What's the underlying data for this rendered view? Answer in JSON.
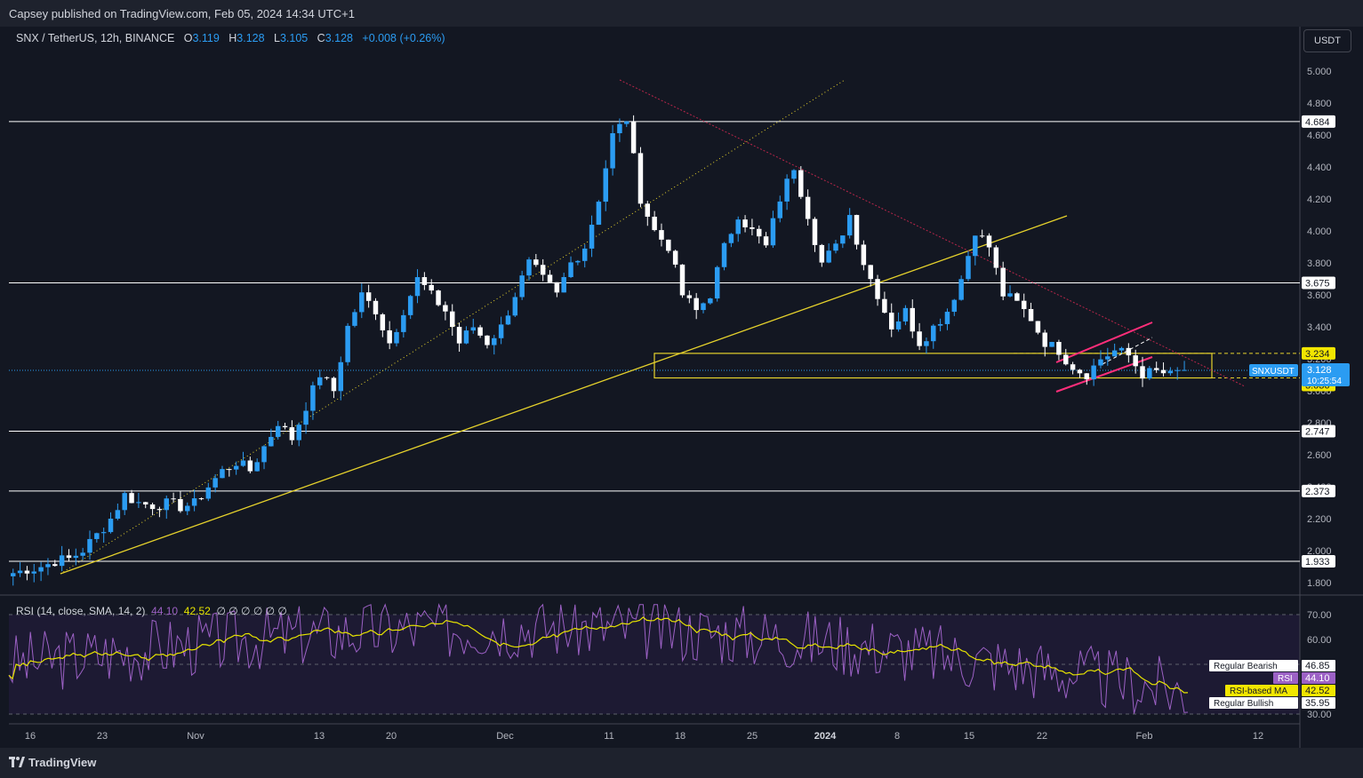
{
  "header": {
    "published": "Capsey published on TradingView.com, Feb 05, 2024 14:34 UTC+1"
  },
  "legend": {
    "symbol": "SNX / TetherUS, 12h, BINANCE",
    "o_label": "O",
    "o": "3.119",
    "h_label": "H",
    "h": "3.128",
    "l_label": "L",
    "l": "3.105",
    "c_label": "C",
    "c": "3.128",
    "change": "+0.008 (+0.26%)"
  },
  "currency_button": "USDT",
  "price_axis": {
    "ticks": [
      "5.000",
      "4.800",
      "4.600",
      "4.400",
      "4.200",
      "4.000",
      "3.800",
      "3.600",
      "3.400",
      "3.200",
      "3.000",
      "2.800",
      "2.600",
      "2.400",
      "2.200",
      "2.000",
      "1.800"
    ],
    "levels": [
      {
        "label": "4.684",
        "value": 4.684
      },
      {
        "label": "3.675",
        "value": 3.675
      },
      {
        "label": "2.747",
        "value": 2.747
      },
      {
        "label": "2.373",
        "value": 2.373
      },
      {
        "label": "1.933",
        "value": 1.933
      }
    ],
    "box_top": {
      "label": "3.234",
      "value": 3.234
    },
    "box_bottom": {
      "label": "3.036",
      "value": 3.036
    },
    "current": {
      "symbol": "SNXUSDT",
      "price": "3.128",
      "countdown": "10:25:54",
      "value": 3.128
    }
  },
  "time_axis": [
    "16",
    "23",
    "Nov",
    "13",
    "20",
    "Dec",
    "11",
    "18",
    "25",
    "2024",
    "8",
    "15",
    "22",
    "Feb",
    "12"
  ],
  "rsi": {
    "legend": "RSI (14, close, SMA, 14, 2)",
    "rsi_value": "44.10",
    "ma_value": "42.52",
    "extra": "∅ ∅ ∅ ∅ ∅ ∅",
    "ticks": [
      "70.00",
      "60.00",
      "30.00"
    ],
    "labels": [
      {
        "text": "Regular Bearish",
        "value": "46.85"
      },
      {
        "text": "RSI",
        "value": "44.10"
      },
      {
        "text": "RSI-based MA",
        "value": "42.52"
      },
      {
        "text": "Regular Bullish",
        "value": "35.95"
      }
    ]
  },
  "chart_data": {
    "type": "candlestick",
    "title": "SNX / TetherUS, 12h, BINANCE",
    "ylim": [
      1.75,
      5.05
    ],
    "y_scale": "linear",
    "grid": false,
    "colors": {
      "up": "#2b9cf2",
      "down": "#ffffff",
      "trend": "#e6d22c",
      "downtrend": "#b8264a",
      "channel": "#ff2e7a",
      "rsi": "#9c61c5",
      "rsi_ma": "#e6e300"
    },
    "x_labels": [
      "16",
      "23",
      "Nov",
      "13",
      "20",
      "Dec",
      "11",
      "18",
      "25",
      "2024",
      "8",
      "15",
      "22",
      "Feb",
      "12"
    ],
    "close_path": [
      1.86,
      1.88,
      1.9,
      1.93,
      1.95,
      2.0,
      2.1,
      2.2,
      2.35,
      2.3,
      2.28,
      2.3,
      2.27,
      2.3,
      2.4,
      2.5,
      2.55,
      2.5,
      2.65,
      2.8,
      2.7,
      2.9,
      3.1,
      3.0,
      3.4,
      3.6,
      3.5,
      3.3,
      3.5,
      3.7,
      3.6,
      3.5,
      3.3,
      3.4,
      3.3,
      3.4,
      3.6,
      3.8,
      3.7,
      3.6,
      3.8,
      3.9,
      4.2,
      4.6,
      4.7,
      4.2,
      4.0,
      3.9,
      3.6,
      3.5,
      3.6,
      3.9,
      4.1,
      4.0,
      3.9,
      4.2,
      4.4,
      4.1,
      3.8,
      3.9,
      4.1,
      3.8,
      3.6,
      3.4,
      3.5,
      3.3,
      3.4,
      3.5,
      3.7,
      4.0,
      3.9,
      3.6,
      3.55,
      3.45,
      3.3,
      3.25,
      3.15,
      3.1,
      3.2,
      3.25,
      3.22,
      3.1,
      3.12,
      3.1,
      3.13
    ],
    "rsi_ylim": [
      28,
      75
    ],
    "rsi_bands": [
      70,
      30
    ]
  }
}
